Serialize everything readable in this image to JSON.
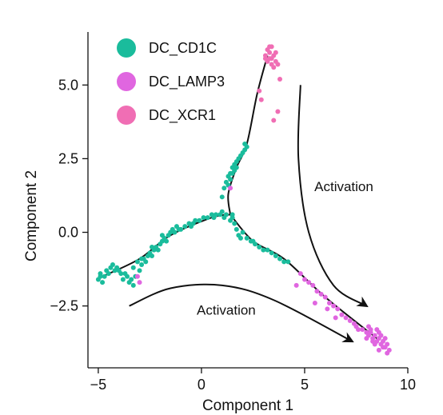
{
  "chart_data": {
    "type": "scatter",
    "title": "",
    "xlabel": "Component 1",
    "ylabel": "Component 2",
    "xlim": [
      -5.5,
      10
    ],
    "ylim": [
      -4.6,
      6.8
    ],
    "xticks": [
      -5,
      0,
      5,
      10
    ],
    "xtick_labels": [
      "−5",
      "0",
      "5",
      "10"
    ],
    "yticks": [
      -2.5,
      0.0,
      2.5,
      5.0
    ],
    "ytick_labels": [
      "−2.5",
      "0.0",
      "2.5",
      "5.0"
    ],
    "grid": false,
    "legend_position": "top-left",
    "series": [
      {
        "name": "DC_CD1C",
        "color": "#1ABC9C",
        "points": [
          [
            -5.0,
            -1.6
          ],
          [
            -4.9,
            -1.5
          ],
          [
            -4.8,
            -1.7
          ],
          [
            -4.9,
            -1.4
          ],
          [
            -4.7,
            -1.5
          ],
          [
            -4.6,
            -1.3
          ],
          [
            -4.5,
            -1.4
          ],
          [
            -4.4,
            -1.2
          ],
          [
            -4.3,
            -1.1
          ],
          [
            -4.2,
            -1.3
          ],
          [
            -4.1,
            -1.2
          ],
          [
            -3.9,
            -1.4
          ],
          [
            -3.8,
            -1.6
          ],
          [
            -3.6,
            -1.5
          ],
          [
            -3.5,
            -1.7
          ],
          [
            -3.4,
            -1.6
          ],
          [
            -3.3,
            -1.8
          ],
          [
            -3.2,
            -1.5
          ],
          [
            -3.3,
            -1.2
          ],
          [
            -3.1,
            -1.0
          ],
          [
            -3.0,
            -1.3
          ],
          [
            -2.9,
            -1.1
          ],
          [
            -2.8,
            -0.9
          ],
          [
            -2.7,
            -1.0
          ],
          [
            -2.6,
            -0.8
          ],
          [
            -2.5,
            -0.7
          ],
          [
            -2.4,
            -0.8
          ],
          [
            -2.3,
            -0.6
          ],
          [
            -2.2,
            -0.5
          ],
          [
            -2.1,
            -0.6
          ],
          [
            -2.0,
            -0.4
          ],
          [
            -1.9,
            -0.3
          ],
          [
            -1.8,
            -0.2
          ],
          [
            -1.7,
            -0.3
          ],
          [
            -1.6,
            -0.1
          ],
          [
            -1.5,
            0.0
          ],
          [
            -1.4,
            0.1
          ],
          [
            -1.3,
            0.0
          ],
          [
            -1.2,
            0.2
          ],
          [
            -1.0,
            0.1
          ],
          [
            -0.8,
            0.2
          ],
          [
            -0.6,
            0.3
          ],
          [
            -0.5,
            0.2
          ],
          [
            -0.3,
            0.4
          ],
          [
            -0.1,
            0.4
          ],
          [
            0.1,
            0.5
          ],
          [
            0.3,
            0.5
          ],
          [
            0.5,
            0.6
          ],
          [
            0.7,
            0.6
          ],
          [
            0.9,
            0.6
          ],
          [
            1.0,
            0.7
          ],
          [
            1.1,
            0.5
          ],
          [
            1.2,
            0.6
          ],
          [
            1.4,
            0.4
          ],
          [
            1.5,
            0.6
          ],
          [
            1.6,
            0.3
          ],
          [
            1.7,
            0.1
          ],
          [
            1.8,
            -0.1
          ],
          [
            1.9,
            -0.2
          ],
          [
            2.0,
            0.0
          ],
          [
            2.2,
            -0.2
          ],
          [
            2.4,
            -0.3
          ],
          [
            2.6,
            -0.4
          ],
          [
            2.8,
            -0.5
          ],
          [
            3.0,
            -0.6
          ],
          [
            3.2,
            -0.6
          ],
          [
            3.4,
            -0.7
          ],
          [
            3.6,
            -0.8
          ],
          [
            3.8,
            -0.9
          ],
          [
            4.0,
            -1.0
          ],
          [
            4.2,
            -1.0
          ],
          [
            1.0,
            1.2
          ],
          [
            1.1,
            1.5
          ],
          [
            1.2,
            1.7
          ],
          [
            1.3,
            1.9
          ],
          [
            1.4,
            2.0
          ],
          [
            1.5,
            2.2
          ],
          [
            1.6,
            2.3
          ],
          [
            1.7,
            2.4
          ],
          [
            1.8,
            2.5
          ],
          [
            1.9,
            2.6
          ],
          [
            2.0,
            2.7
          ],
          [
            2.1,
            2.8
          ],
          [
            2.1,
            3.0
          ],
          [
            2.2,
            2.9
          ],
          [
            1.3,
            1.6
          ],
          [
            1.4,
            1.8
          ],
          [
            1.5,
            2.0
          ],
          [
            1.6,
            2.1
          ],
          [
            1.7,
            2.2
          ],
          [
            -4.0,
            -1.3
          ],
          [
            -3.7,
            -1.4
          ],
          [
            -2.9,
            -0.9
          ],
          [
            -2.4,
            -0.5
          ],
          [
            -1.9,
            -0.1
          ],
          [
            -1.1,
            0.1
          ],
          [
            -0.4,
            0.3
          ],
          [
            0.6,
            0.5
          ],
          [
            1.5,
            0.5
          ],
          [
            2.5,
            -0.3
          ]
        ]
      },
      {
        "name": "DC_LAMP3",
        "color": "#E066E0",
        "points": [
          [
            4.8,
            -1.4
          ],
          [
            5.0,
            -1.6
          ],
          [
            5.2,
            -1.7
          ],
          [
            5.4,
            -1.8
          ],
          [
            5.6,
            -2.0
          ],
          [
            5.8,
            -2.1
          ],
          [
            6.0,
            -2.2
          ],
          [
            6.2,
            -2.4
          ],
          [
            6.4,
            -2.5
          ],
          [
            6.6,
            -2.6
          ],
          [
            6.8,
            -2.8
          ],
          [
            7.0,
            -2.9
          ],
          [
            7.2,
            -3.0
          ],
          [
            7.4,
            -3.1
          ],
          [
            7.6,
            -3.3
          ],
          [
            7.8,
            -3.3
          ],
          [
            8.0,
            -3.4
          ],
          [
            8.1,
            -3.5
          ],
          [
            8.2,
            -3.4
          ],
          [
            8.3,
            -3.6
          ],
          [
            8.4,
            -3.5
          ],
          [
            8.5,
            -3.7
          ],
          [
            8.6,
            -3.6
          ],
          [
            8.7,
            -3.8
          ],
          [
            8.8,
            -3.7
          ],
          [
            8.9,
            -3.9
          ],
          [
            9.0,
            -3.8
          ],
          [
            9.1,
            -4.0
          ],
          [
            8.2,
            -3.3
          ],
          [
            8.4,
            -3.8
          ],
          [
            8.6,
            -3.4
          ],
          [
            8.8,
            -3.9
          ],
          [
            8.3,
            -3.7
          ],
          [
            8.5,
            -3.3
          ],
          [
            8.7,
            -3.5
          ],
          [
            8.9,
            -3.6
          ],
          [
            9.0,
            -4.1
          ],
          [
            8.1,
            -3.2
          ],
          [
            5.5,
            -2.4
          ],
          [
            6.5,
            -2.9
          ],
          [
            4.6,
            -1.8
          ],
          [
            6.1,
            -2.6
          ],
          [
            7.5,
            -3.2
          ],
          [
            8.0,
            -3.6
          ],
          [
            8.6,
            -4.0
          ],
          [
            1.4,
            1.5
          ],
          [
            -3.0,
            -1.7
          ],
          [
            -3.1,
            -1.5
          ]
        ]
      },
      {
        "name": "DC_XCR1",
        "color": "#F06EB4",
        "points": [
          [
            3.1,
            6.0
          ],
          [
            3.2,
            6.2
          ],
          [
            3.3,
            6.1
          ],
          [
            3.4,
            6.3
          ],
          [
            3.5,
            6.0
          ],
          [
            3.3,
            5.9
          ],
          [
            3.2,
            5.8
          ],
          [
            3.4,
            5.7
          ],
          [
            3.6,
            5.8
          ],
          [
            3.5,
            5.6
          ],
          [
            3.1,
            5.9
          ],
          [
            3.3,
            6.3
          ],
          [
            3.6,
            6.1
          ],
          [
            3.4,
            5.9
          ],
          [
            3.7,
            5.7
          ],
          [
            2.8,
            4.8
          ],
          [
            2.9,
            4.5
          ],
          [
            3.8,
            5.2
          ],
          [
            3.7,
            4.1
          ],
          [
            3.5,
            3.8
          ]
        ]
      }
    ],
    "trajectory": [
      [
        [
          -4.8,
          -1.5
        ],
        [
          -3.0,
          -0.9
        ],
        [
          -1.5,
          -0.1
        ],
        [
          0.5,
          0.5
        ],
        [
          1.4,
          0.6
        ]
      ],
      [
        [
          1.4,
          0.6
        ],
        [
          1.3,
          1.3
        ],
        [
          1.7,
          2.2
        ],
        [
          2.2,
          3.0
        ],
        [
          2.7,
          4.7
        ],
        [
          3.2,
          6.0
        ]
      ],
      [
        [
          1.4,
          0.6
        ],
        [
          2.5,
          -0.3
        ],
        [
          4.0,
          -0.9
        ],
        [
          6.0,
          -2.2
        ],
        [
          8.5,
          -3.6
        ]
      ]
    ],
    "annotations": [
      {
        "text": "Activation",
        "x": 6.9,
        "y": 1.4
      },
      {
        "text": "Activation",
        "x": 1.2,
        "y": -2.8
      }
    ],
    "arrows": [
      [
        [
          4.8,
          5.0
        ],
        [
          4.7,
          2.5
        ],
        [
          5.2,
          0.0
        ],
        [
          6.4,
          -1.8
        ],
        [
          8.0,
          -2.5
        ]
      ],
      [
        [
          -3.5,
          -2.5
        ],
        [
          -1.5,
          -1.9
        ],
        [
          1.0,
          -1.8
        ],
        [
          3.5,
          -2.3
        ],
        [
          7.3,
          -3.7
        ]
      ]
    ]
  }
}
